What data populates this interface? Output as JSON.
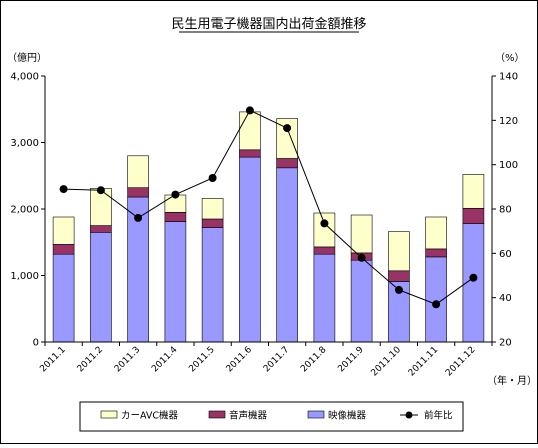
{
  "chart_data": {
    "type": "bar",
    "stacked": true,
    "title": "民生用電子機器国内出荷金額推移",
    "ylabel_left": "（億円）",
    "ylabel_right": "（%）",
    "xlabel": "（年・月）",
    "categories": [
      "2011.1",
      "2011.2",
      "2011.3",
      "2011.4",
      "2011.5",
      "2011.6",
      "2011.7",
      "2011.8",
      "2011.9",
      "2011.10",
      "2011.11",
      "2011.12"
    ],
    "ylim_left": [
      0,
      4000
    ],
    "yticks_left": [
      0,
      1000,
      2000,
      3000,
      4000
    ],
    "yticks_left_labels": [
      "0",
      "1,000",
      "2,000",
      "3,000",
      "4,000"
    ],
    "ylim_right": [
      20,
      140
    ],
    "yticks_right": [
      20,
      40,
      60,
      80,
      100,
      120,
      140
    ],
    "yticks_right_labels": [
      "20",
      "40",
      "60",
      "80",
      "100",
      "120",
      "140"
    ],
    "series": [
      {
        "name": "映像機器",
        "kind": "bar",
        "axis": "left",
        "color": "#9999ff",
        "values": [
          1320,
          1650,
          2180,
          1810,
          1720,
          2780,
          2620,
          1320,
          1230,
          910,
          1280,
          1780
        ]
      },
      {
        "name": "音声機器",
        "kind": "bar",
        "axis": "left",
        "color": "#993366",
        "values": [
          150,
          100,
          140,
          140,
          130,
          110,
          140,
          110,
          110,
          160,
          120,
          230
        ]
      },
      {
        "name": "カーAVC機器",
        "kind": "bar",
        "axis": "left",
        "color": "#ffffcc",
        "values": [
          410,
          560,
          480,
          260,
          310,
          570,
          600,
          510,
          570,
          590,
          480,
          510
        ]
      },
      {
        "name": "前年比",
        "kind": "line",
        "axis": "right",
        "color": "#000000",
        "values": [
          89,
          88.5,
          76,
          86.5,
          94,
          124.5,
          116.5,
          73.5,
          58,
          43.5,
          37,
          49
        ]
      }
    ],
    "legend_order": [
      "カーAVC機器",
      "音声機器",
      "映像機器",
      "前年比"
    ],
    "legend_position": "bottom",
    "grid": false
  }
}
